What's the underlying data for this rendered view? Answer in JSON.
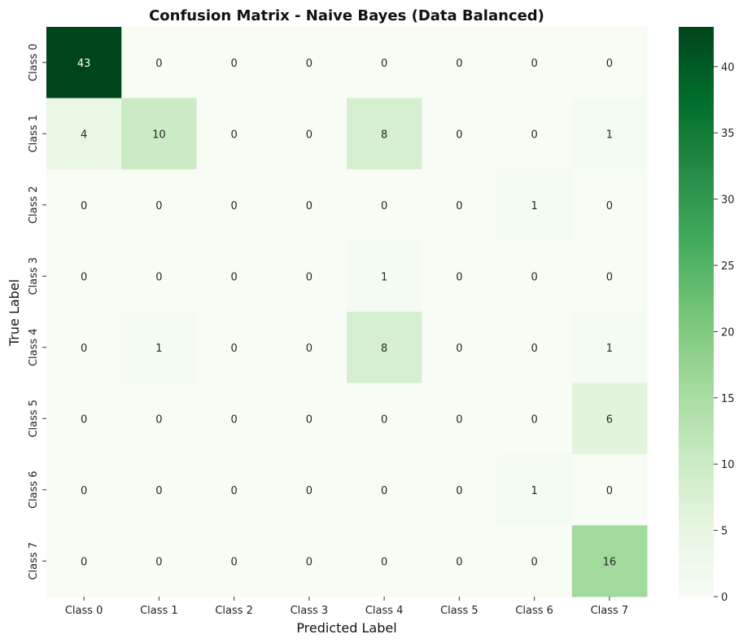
{
  "chart_data": {
    "type": "heatmap",
    "title": "Confusion Matrix - Naive Bayes (Data Balanced)",
    "xlabel": "Predicted Label",
    "ylabel": "True Label",
    "x_categories": [
      "Class 0",
      "Class 1",
      "Class 2",
      "Class 3",
      "Class 4",
      "Class 5",
      "Class 6",
      "Class 7"
    ],
    "y_categories": [
      "Class 0",
      "Class 1",
      "Class 2",
      "Class 3",
      "Class 4",
      "Class 5",
      "Class 6",
      "Class 7"
    ],
    "values": [
      [
        43,
        0,
        0,
        0,
        0,
        0,
        0,
        0
      ],
      [
        4,
        10,
        0,
        0,
        8,
        0,
        0,
        1
      ],
      [
        0,
        0,
        0,
        0,
        0,
        0,
        1,
        0
      ],
      [
        0,
        0,
        0,
        0,
        1,
        0,
        0,
        0
      ],
      [
        0,
        1,
        0,
        0,
        8,
        0,
        0,
        1
      ],
      [
        0,
        0,
        0,
        0,
        0,
        0,
        0,
        6
      ],
      [
        0,
        0,
        0,
        0,
        0,
        0,
        1,
        0
      ],
      [
        0,
        0,
        0,
        0,
        0,
        0,
        0,
        16
      ]
    ],
    "colorbar": {
      "min": 0,
      "max": 43,
      "ticks": [
        0,
        5,
        10,
        15,
        20,
        25,
        30,
        35,
        40
      ],
      "colormap": "Greens",
      "color_low": "#f7fcf5",
      "color_high": "#00441b"
    },
    "grid": false,
    "legend": "none"
  }
}
